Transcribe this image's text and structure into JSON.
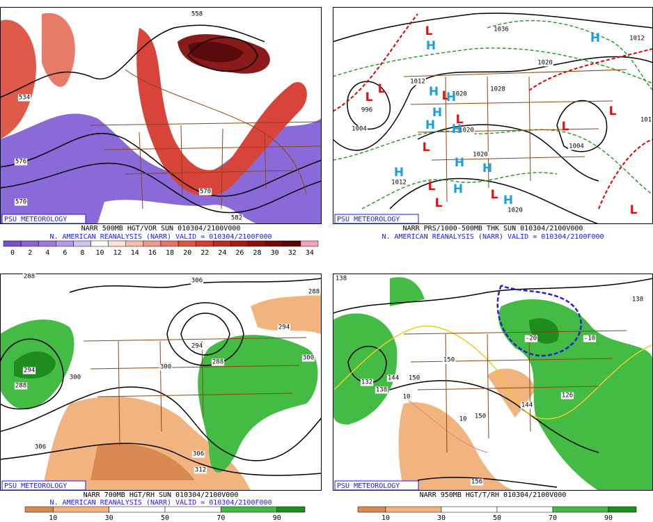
{
  "panels": [
    {
      "brand": "PSU METEOROLOGY",
      "line1": "NARR 500MB HGT/VOR SUN 010304/2100V000",
      "line2": "N. AMERICAN REANALYSIS (NARR) VALID = 010304/2100F000",
      "colorbar": [
        0,
        2,
        4,
        6,
        8,
        10,
        12,
        14,
        16,
        18,
        20,
        22,
        24,
        26,
        28,
        30,
        32,
        34
      ],
      "contour_labels": [
        "558",
        "534",
        "576",
        "570",
        "570",
        "582"
      ]
    },
    {
      "brand": "PSU METEOROLOGY",
      "line1": "NARR PRS/1000-500MB THK SUN 010304/2100V000",
      "line2": "N. AMERICAN REANALYSIS (NARR) VALID = 010304/2100F000",
      "contour_labels": [
        "1036",
        "1012",
        "1020",
        "1012",
        "1020",
        "1028",
        "996",
        "1004",
        "1020",
        "1004",
        "1020",
        "1012",
        "1020",
        "101"
      ],
      "pressure_centers": [
        "L",
        "L",
        "L",
        "L",
        "L",
        "L",
        "L",
        "L",
        "L",
        "L",
        "L",
        "L",
        "H",
        "H",
        "H",
        "H",
        "H",
        "H",
        "H",
        "H",
        "H",
        "H",
        "H",
        "H"
      ]
    },
    {
      "brand": "PSU METEOROLOGY",
      "line1": "NARR 700MB HGT/RH SUN 010304/2100V000",
      "line2": "N. AMERICAN REANALYSIS (NARR) VALID = 010304/2100F000",
      "colorbar": [
        10,
        30,
        50,
        70,
        90
      ],
      "contour_labels": [
        "288",
        "306",
        "288",
        "294",
        "294",
        "288",
        "300",
        "300",
        "294",
        "288",
        "300",
        "306",
        "306",
        "312"
      ]
    },
    {
      "brand": "PSU METEOROLOGY",
      "line1": "NARR 950MB HGT/T/RH 010304/2100V000",
      "colorbar": [
        10,
        30,
        50,
        70,
        90
      ],
      "contour_labels": [
        "138",
        "138",
        "132",
        "138",
        "144",
        "150",
        "150",
        "144",
        "150",
        "126",
        "156",
        "-20",
        "-10",
        "10",
        "10"
      ]
    }
  ]
}
